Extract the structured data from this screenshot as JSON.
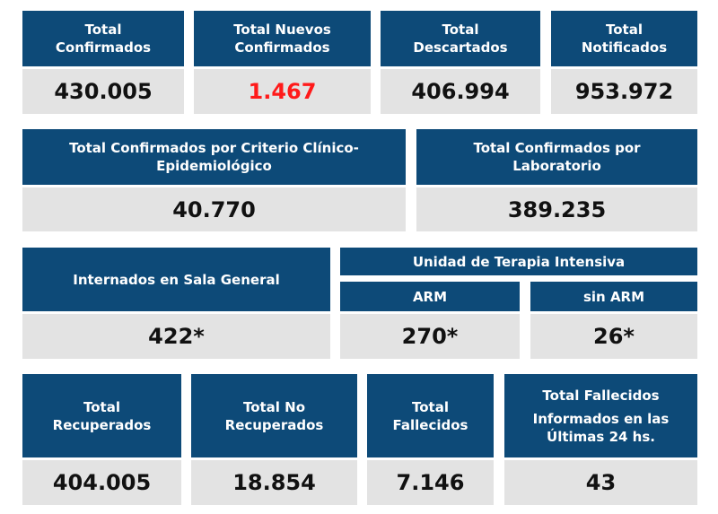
{
  "colors": {
    "header_bg": "#0d4a78",
    "value_bg": "#e3e3e3",
    "highlight": "#ff1a1a"
  },
  "row1": {
    "confirmados": {
      "label1": "Total",
      "label2": "Confirmados",
      "value": "430.005"
    },
    "nuevos": {
      "label1": "Total Nuevos",
      "label2": "Confirmados",
      "value": "1.467"
    },
    "descartados": {
      "label1": "Total",
      "label2": "Descartados",
      "value": "406.994"
    },
    "notificados": {
      "label1": "Total",
      "label2": "Notificados",
      "value": "953.972"
    }
  },
  "row2": {
    "clinico": {
      "label1": "Total Confirmados por Criterio Clínico-",
      "label2": "Epidemiológico",
      "value": "40.770"
    },
    "laboratorio": {
      "label1": "Total Confirmados por",
      "label2": "Laboratorio",
      "value": "389.235"
    }
  },
  "row3": {
    "sala_general": {
      "label": "Internados en Sala General",
      "value": "422*"
    },
    "uti": {
      "title": "Unidad de Terapia Intensiva"
    },
    "arm": {
      "label": "ARM",
      "value": "270*"
    },
    "sin_arm": {
      "label": "sin ARM",
      "value": "26*"
    }
  },
  "row4": {
    "recuperados": {
      "label1": "Total",
      "label2": "Recuperados",
      "value": "404.005"
    },
    "no_recuperados": {
      "label1": "Total No",
      "label2": "Recuperados",
      "value": "18.854"
    },
    "fallecidos": {
      "label1": "Total",
      "label2": "Fallecidos",
      "value": "7.146"
    },
    "fallecidos_24": {
      "label1": "Total Fallecidos",
      "label2": "Informados en las",
      "label3": "Últimas 24 hs.",
      "value": "43"
    }
  }
}
